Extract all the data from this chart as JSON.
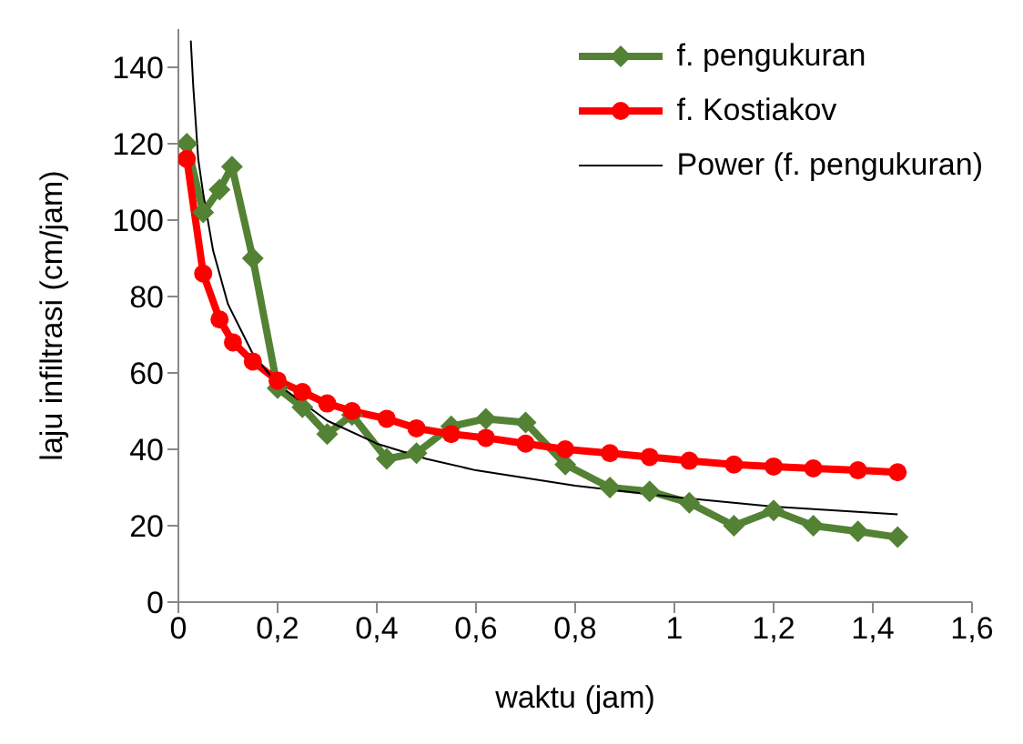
{
  "chart_data": {
    "type": "line",
    "xlabel": "waktu (jam)",
    "ylabel": "laju infiltrasi (cm/jam)",
    "xlim": [
      0,
      1.6
    ],
    "xticks": [
      0,
      {
        "value": 0.2,
        "label": "0,2"
      },
      {
        "value": 0.4,
        "label": "0,4"
      },
      {
        "value": 0.6,
        "label": "0,6"
      },
      {
        "value": 0.8,
        "label": "0,8"
      },
      1,
      {
        "value": 1.2,
        "label": "1,2"
      },
      {
        "value": 1.4,
        "label": "1,4"
      },
      {
        "value": 1.6,
        "label": "1,6"
      }
    ],
    "ylim": [
      0,
      150
    ],
    "yticks": [
      0,
      20,
      40,
      60,
      80,
      100,
      120,
      140
    ],
    "grid": false,
    "legend": "top right",
    "series": [
      {
        "name": "f. pengukuran",
        "color": "#548235",
        "marker": "diamond",
        "x": [
          0.017,
          0.05,
          0.083,
          0.108,
          0.15,
          0.2,
          0.25,
          0.3,
          0.35,
          0.42,
          0.48,
          0.55,
          0.62,
          0.7,
          0.78,
          0.87,
          0.95,
          1.03,
          1.12,
          1.2,
          1.28,
          1.37,
          1.45
        ],
        "values": [
          120,
          102,
          108,
          114,
          90,
          56,
          51,
          44,
          49,
          37.5,
          39,
          46,
          48,
          47,
          36,
          30,
          29,
          26,
          20,
          24,
          20,
          18.5,
          17
        ]
      },
      {
        "name": "f. Kostiakov",
        "color": "#ff0000",
        "marker": "circle",
        "x": [
          0.017,
          0.05,
          0.083,
          0.11,
          0.15,
          0.2,
          0.25,
          0.3,
          0.35,
          0.42,
          0.48,
          0.55,
          0.62,
          0.7,
          0.78,
          0.87,
          0.95,
          1.03,
          1.12,
          1.2,
          1.28,
          1.37,
          1.45
        ],
        "values": [
          116,
          86,
          74,
          68,
          63,
          58,
          55,
          52,
          50,
          48,
          45.5,
          44,
          43,
          41.5,
          40,
          39,
          38,
          37,
          36,
          35.5,
          35,
          34.5,
          34
        ]
      },
      {
        "name": "Power (f. pengukuran)",
        "color": "#000000",
        "marker": "none",
        "x": [
          0.025,
          0.03,
          0.04,
          0.05,
          0.07,
          0.1,
          0.15,
          0.2,
          0.3,
          0.4,
          0.5,
          0.6,
          0.8,
          1.0,
          1.2,
          1.45
        ],
        "values": [
          147,
          135,
          116,
          107,
          92,
          78,
          65,
          57,
          47.5,
          41.5,
          37.5,
          34.5,
          30.5,
          27.5,
          25,
          23
        ]
      }
    ]
  }
}
